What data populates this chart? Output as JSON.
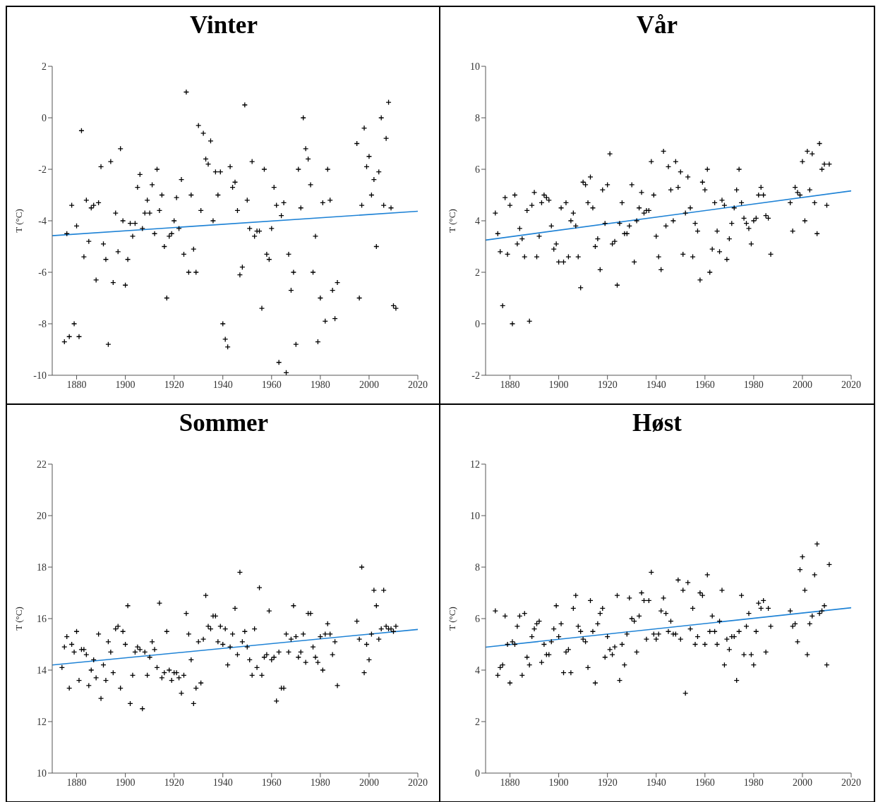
{
  "chart_data": [
    {
      "type": "scatter",
      "title": "Vinter",
      "ylabel": "T (°C)",
      "xlim": [
        1870,
        2020
      ],
      "xticks": [
        1880,
        1900,
        1920,
        1940,
        1960,
        1980,
        2000,
        2020
      ],
      "ylim": [
        -10,
        2
      ],
      "yticks": [
        -10,
        -8,
        -6,
        -4,
        -2,
        0,
        2
      ],
      "series": [
        {
          "marker": "cross",
          "color": "#000000",
          "x": [
            1875,
            1876,
            1877,
            1878,
            1879,
            1880,
            1881,
            1882,
            1883,
            1884,
            1885,
            1886,
            1887,
            1888,
            1889,
            1890,
            1891,
            1892,
            1893,
            1894,
            1895,
            1896,
            1897,
            1898,
            1899,
            1900,
            1901,
            1902,
            1903,
            1904,
            1905,
            1906,
            1907,
            1908,
            1909,
            1910,
            1911,
            1912,
            1913,
            1914,
            1915,
            1916,
            1917,
            1918,
            1919,
            1920,
            1921,
            1922,
            1923,
            1924,
            1925,
            1926,
            1927,
            1928,
            1929,
            1930,
            1931,
            1932,
            1933,
            1934,
            1935,
            1936,
            1937,
            1938,
            1939,
            1940,
            1941,
            1942,
            1943,
            1944,
            1945,
            1946,
            1947,
            1948,
            1949,
            1950,
            1951,
            1952,
            1953,
            1954,
            1955,
            1956,
            1957,
            1958,
            1959,
            1960,
            1961,
            1962,
            1963,
            1964,
            1965,
            1966,
            1967,
            1968,
            1969,
            1970,
            1971,
            1972,
            1973,
            1974,
            1975,
            1976,
            1977,
            1978,
            1979,
            1980,
            1981,
            1982,
            1983,
            1984,
            1985,
            1986,
            1987,
            1995,
            1996,
            1997,
            1998,
            1999,
            2000,
            2001,
            2002,
            2003,
            2004,
            2005,
            2006,
            2007,
            2008,
            2009,
            2010,
            2011
          ],
          "values": [
            -8.7,
            -4.5,
            -8.5,
            -3.4,
            -8.0,
            -4.2,
            -8.5,
            -0.5,
            -5.4,
            -3.2,
            -4.8,
            -3.5,
            -3.4,
            -6.3,
            -3.3,
            -1.9,
            -4.9,
            -5.5,
            -8.8,
            -1.7,
            -6.4,
            -3.7,
            -5.2,
            -1.2,
            -4.0,
            -6.5,
            -5.5,
            -4.1,
            -4.6,
            -4.1,
            -2.7,
            -2.2,
            -4.3,
            -3.7,
            -3.2,
            -3.7,
            -2.6,
            -4.5,
            -2.0,
            -3.6,
            -3.0,
            -5.0,
            -7.0,
            -4.6,
            -4.5,
            -4.0,
            -3.1,
            -4.3,
            -2.4,
            -5.3,
            1.0,
            -6.0,
            -3.0,
            -5.1,
            -6.0,
            -0.3,
            -3.6,
            -0.6,
            -1.6,
            -1.8,
            -0.9,
            -4.0,
            -2.1,
            -3.0,
            -2.1,
            -8.0,
            -8.6,
            -8.9,
            -1.9,
            -2.7,
            -2.5,
            -3.6,
            -6.1,
            -5.8,
            0.5,
            -3.2,
            -4.3,
            -1.7,
            -4.6,
            -4.4,
            -4.4,
            -7.4,
            -2.0,
            -5.3,
            -5.5,
            -4.3,
            -2.7,
            -3.4,
            -9.5,
            -3.8,
            -3.3,
            -9.9,
            -5.3,
            -6.7,
            -6.0,
            -8.8,
            -2.0,
            -3.5,
            0.0,
            -1.2,
            -1.6,
            -2.6,
            -6.0,
            -4.6,
            -8.7,
            -7.0,
            -3.3,
            -7.9,
            -2.0,
            -3.2,
            -6.7,
            -7.8,
            -6.4,
            -1.0,
            -7.0,
            -3.4,
            -0.4,
            -1.9,
            -1.5,
            -3.0,
            -2.4,
            -5.0,
            -2.1,
            0.0,
            -3.4,
            -0.8,
            0.6,
            -3.5,
            -7.3,
            -7.4
          ]
        },
        {
          "type": "line",
          "color": "#1f83d6",
          "x": [
            1870,
            2020
          ],
          "values": [
            -4.58,
            -3.63
          ]
        }
      ]
    },
    {
      "type": "scatter",
      "title": "Vår",
      "ylabel": "T (°C)",
      "xlim": [
        1870,
        2020
      ],
      "xticks": [
        1880,
        1900,
        1920,
        1940,
        1960,
        1980,
        2000,
        2020
      ],
      "ylim": [
        -2,
        10
      ],
      "yticks": [
        -2,
        0,
        2,
        4,
        6,
        8,
        10
      ],
      "series": [
        {
          "marker": "cross",
          "color": "#000000",
          "x": [
            1874,
            1875,
            1876,
            1877,
            1878,
            1879,
            1880,
            1881,
            1882,
            1883,
            1884,
            1885,
            1886,
            1887,
            1888,
            1889,
            1890,
            1891,
            1892,
            1893,
            1894,
            1895,
            1896,
            1897,
            1898,
            1899,
            1900,
            1901,
            1902,
            1903,
            1904,
            1905,
            1906,
            1907,
            1908,
            1909,
            1910,
            1911,
            1912,
            1913,
            1914,
            1915,
            1916,
            1917,
            1918,
            1919,
            1920,
            1921,
            1922,
            1923,
            1924,
            1925,
            1926,
            1927,
            1928,
            1929,
            1930,
            1931,
            1932,
            1933,
            1934,
            1935,
            1936,
            1937,
            1938,
            1939,
            1940,
            1941,
            1942,
            1943,
            1944,
            1945,
            1946,
            1947,
            1948,
            1949,
            1950,
            1951,
            1952,
            1953,
            1954,
            1955,
            1956,
            1957,
            1958,
            1959,
            1960,
            1961,
            1962,
            1963,
            1964,
            1965,
            1966,
            1967,
            1968,
            1969,
            1970,
            1971,
            1972,
            1973,
            1974,
            1975,
            1976,
            1977,
            1978,
            1979,
            1980,
            1981,
            1982,
            1983,
            1984,
            1985,
            1986,
            1987,
            1995,
            1996,
            1997,
            1998,
            1999,
            2000,
            2001,
            2002,
            2003,
            2004,
            2005,
            2006,
            2007,
            2008,
            2009,
            2010,
            2011
          ],
          "values": [
            4.3,
            3.5,
            2.8,
            0.7,
            4.9,
            2.7,
            4.6,
            0.0,
            5.0,
            3.1,
            3.7,
            3.3,
            2.6,
            4.4,
            0.1,
            4.6,
            5.1,
            2.6,
            3.4,
            4.7,
            5.0,
            4.9,
            4.8,
            3.8,
            2.9,
            3.1,
            2.4,
            4.5,
            2.4,
            4.7,
            2.6,
            4.0,
            4.3,
            3.8,
            2.6,
            1.4,
            5.5,
            5.4,
            4.7,
            5.7,
            4.5,
            3.0,
            3.3,
            2.1,
            5.2,
            3.9,
            5.4,
            6.6,
            3.1,
            3.2,
            1.5,
            3.9,
            4.7,
            3.5,
            3.5,
            3.8,
            5.4,
            2.4,
            4.0,
            4.5,
            5.1,
            4.3,
            4.4,
            4.4,
            6.3,
            5.0,
            3.4,
            2.6,
            2.1,
            6.7,
            3.8,
            6.1,
            5.2,
            4.0,
            6.3,
            5.3,
            5.9,
            2.7,
            4.3,
            5.7,
            4.5,
            2.6,
            3.9,
            3.6,
            1.7,
            5.5,
            5.2,
            6.0,
            2.0,
            2.9,
            4.7,
            3.6,
            2.8,
            4.8,
            4.6,
            2.5,
            3.3,
            3.9,
            4.5,
            5.2,
            6.0,
            4.7,
            4.1,
            3.9,
            3.7,
            3.1,
            4.0,
            4.1,
            5.0,
            5.3,
            5.0,
            4.2,
            4.1,
            2.7,
            4.7,
            3.6,
            5.3,
            5.1,
            5.0,
            6.3,
            4.0,
            6.7,
            5.2,
            6.6,
            4.7,
            3.5,
            7.0,
            6.0,
            6.2,
            4.6,
            6.2
          ]
        },
        {
          "type": "line",
          "color": "#1f83d6",
          "x": [
            1870,
            2020
          ],
          "values": [
            3.25,
            5.16
          ]
        }
      ]
    },
    {
      "type": "scatter",
      "title": "Sommer",
      "ylabel": "T (°C)",
      "xlim": [
        1870,
        2020
      ],
      "xticks": [
        1880,
        1900,
        1920,
        1940,
        1960,
        1980,
        2000,
        2020
      ],
      "ylim": [
        10,
        22
      ],
      "yticks": [
        10,
        12,
        14,
        16,
        18,
        20,
        22
      ],
      "series": [
        {
          "marker": "cross",
          "color": "#000000",
          "x": [
            1874,
            1875,
            1876,
            1877,
            1878,
            1879,
            1880,
            1881,
            1882,
            1883,
            1884,
            1885,
            1886,
            1887,
            1888,
            1889,
            1890,
            1891,
            1892,
            1893,
            1894,
            1895,
            1896,
            1897,
            1898,
            1899,
            1900,
            1901,
            1902,
            1903,
            1904,
            1905,
            1906,
            1907,
            1908,
            1909,
            1910,
            1911,
            1912,
            1913,
            1914,
            1915,
            1916,
            1917,
            1918,
            1919,
            1920,
            1921,
            1922,
            1923,
            1924,
            1925,
            1926,
            1927,
            1928,
            1929,
            1930,
            1931,
            1932,
            1933,
            1934,
            1935,
            1936,
            1937,
            1938,
            1939,
            1940,
            1941,
            1942,
            1943,
            1944,
            1945,
            1946,
            1947,
            1948,
            1949,
            1950,
            1951,
            1952,
            1953,
            1954,
            1955,
            1956,
            1957,
            1958,
            1959,
            1960,
            1961,
            1962,
            1963,
            1964,
            1965,
            1966,
            1967,
            1968,
            1969,
            1970,
            1971,
            1972,
            1973,
            1974,
            1975,
            1976,
            1977,
            1978,
            1979,
            1980,
            1981,
            1982,
            1983,
            1984,
            1985,
            1986,
            1987,
            1995,
            1996,
            1997,
            1998,
            1999,
            2000,
            2001,
            2002,
            2003,
            2004,
            2005,
            2006,
            2007,
            2008,
            2009,
            2010,
            2011
          ],
          "values": [
            14.1,
            14.9,
            15.3,
            13.3,
            15.0,
            14.7,
            15.5,
            13.6,
            14.8,
            14.8,
            14.6,
            13.4,
            14.0,
            14.4,
            13.7,
            15.4,
            12.9,
            14.2,
            13.6,
            15.1,
            14.7,
            13.9,
            15.6,
            15.7,
            13.3,
            15.5,
            15.0,
            16.5,
            12.7,
            13.8,
            14.7,
            14.9,
            14.8,
            12.5,
            14.7,
            13.8,
            14.5,
            15.1,
            14.8,
            14.1,
            16.6,
            13.7,
            13.9,
            15.5,
            14.0,
            13.6,
            13.9,
            13.9,
            13.7,
            13.1,
            13.8,
            16.2,
            15.4,
            14.4,
            12.7,
            13.3,
            15.1,
            13.5,
            15.2,
            16.9,
            15.7,
            15.6,
            16.1,
            16.1,
            15.1,
            15.7,
            15.0,
            15.6,
            14.2,
            14.9,
            15.4,
            16.4,
            14.6,
            17.8,
            15.1,
            15.5,
            14.9,
            14.4,
            13.8,
            15.6,
            14.1,
            17.2,
            13.8,
            14.5,
            14.6,
            16.3,
            14.4,
            14.5,
            12.8,
            14.7,
            13.3,
            13.3,
            15.4,
            14.7,
            15.2,
            16.5,
            15.3,
            14.5,
            14.7,
            15.4,
            14.3,
            16.2,
            16.2,
            14.9,
            14.5,
            14.3,
            15.3,
            14.0,
            15.4,
            15.8,
            15.4,
            14.6,
            15.1,
            13.4,
            15.9,
            15.2,
            18.0,
            13.9,
            15.0,
            14.4,
            15.4,
            17.1,
            16.5,
            15.2,
            15.6,
            17.1,
            15.7,
            15.6,
            15.6,
            15.5,
            15.7
          ]
        },
        {
          "type": "line",
          "color": "#1f83d6",
          "x": [
            1870,
            2020
          ],
          "values": [
            14.2,
            15.58
          ]
        }
      ]
    },
    {
      "type": "scatter",
      "title": "Høst",
      "ylabel": "T (°C)",
      "xlim": [
        1870,
        2020
      ],
      "xticks": [
        1880,
        1900,
        1920,
        1940,
        1960,
        1980,
        2000,
        2020
      ],
      "ylim": [
        0,
        12
      ],
      "yticks": [
        0,
        2,
        4,
        6,
        8,
        10,
        12
      ],
      "series": [
        {
          "marker": "cross",
          "color": "#000000",
          "x": [
            1874,
            1875,
            1876,
            1877,
            1878,
            1879,
            1880,
            1881,
            1882,
            1883,
            1884,
            1885,
            1886,
            1887,
            1888,
            1889,
            1890,
            1891,
            1892,
            1893,
            1894,
            1895,
            1896,
            1897,
            1898,
            1899,
            1900,
            1901,
            1902,
            1903,
            1904,
            1905,
            1906,
            1907,
            1908,
            1909,
            1910,
            1911,
            1912,
            1913,
            1914,
            1915,
            1916,
            1917,
            1918,
            1919,
            1920,
            1921,
            1922,
            1923,
            1924,
            1925,
            1926,
            1927,
            1928,
            1929,
            1930,
            1931,
            1932,
            1933,
            1934,
            1935,
            1936,
            1937,
            1938,
            1939,
            1940,
            1941,
            1942,
            1943,
            1944,
            1945,
            1946,
            1947,
            1948,
            1949,
            1950,
            1951,
            1952,
            1953,
            1954,
            1955,
            1956,
            1957,
            1958,
            1959,
            1960,
            1961,
            1962,
            1963,
            1964,
            1965,
            1966,
            1967,
            1968,
            1969,
            1970,
            1971,
            1972,
            1973,
            1974,
            1975,
            1976,
            1977,
            1978,
            1979,
            1980,
            1981,
            1982,
            1983,
            1984,
            1985,
            1986,
            1987,
            1995,
            1996,
            1997,
            1998,
            1999,
            2000,
            2001,
            2002,
            2003,
            2004,
            2005,
            2006,
            2007,
            2008,
            2009,
            2010,
            2011
          ],
          "values": [
            6.3,
            3.8,
            4.1,
            4.2,
            6.1,
            5.0,
            3.5,
            5.1,
            5.0,
            5.7,
            6.1,
            3.8,
            6.2,
            4.5,
            4.2,
            5.3,
            5.6,
            5.8,
            5.9,
            4.3,
            5.0,
            4.6,
            4.6,
            5.1,
            5.6,
            6.5,
            5.3,
            5.8,
            3.9,
            4.7,
            4.8,
            3.9,
            6.4,
            6.9,
            5.7,
            5.5,
            5.2,
            5.1,
            4.1,
            6.7,
            5.5,
            3.5,
            5.8,
            6.2,
            6.4,
            4.5,
            5.3,
            4.8,
            4.6,
            4.9,
            6.9,
            3.6,
            5.0,
            4.2,
            5.4,
            6.8,
            6.0,
            5.9,
            4.7,
            6.1,
            7.0,
            6.7,
            5.2,
            6.7,
            7.8,
            5.4,
            5.2,
            5.4,
            6.3,
            6.8,
            6.2,
            5.5,
            5.9,
            5.4,
            5.4,
            7.5,
            5.2,
            7.1,
            3.1,
            7.4,
            5.6,
            6.4,
            5.0,
            5.3,
            7.0,
            6.9,
            5.0,
            7.7,
            5.5,
            6.1,
            5.5,
            5.0,
            5.9,
            7.1,
            4.2,
            5.2,
            4.8,
            5.3,
            5.3,
            3.6,
            5.5,
            6.9,
            4.6,
            5.7,
            6.2,
            4.6,
            4.2,
            5.5,
            6.6,
            6.4,
            6.7,
            4.7,
            6.4,
            5.7,
            6.3,
            5.7,
            5.8,
            5.1,
            7.9,
            8.4,
            7.1,
            4.6,
            5.8,
            6.1,
            7.7,
            8.9,
            6.2,
            6.3,
            6.5,
            4.2,
            8.1
          ]
        },
        {
          "type": "line",
          "color": "#1f83d6",
          "x": [
            1870,
            2020
          ],
          "values": [
            4.89,
            6.42
          ]
        }
      ]
    }
  ]
}
